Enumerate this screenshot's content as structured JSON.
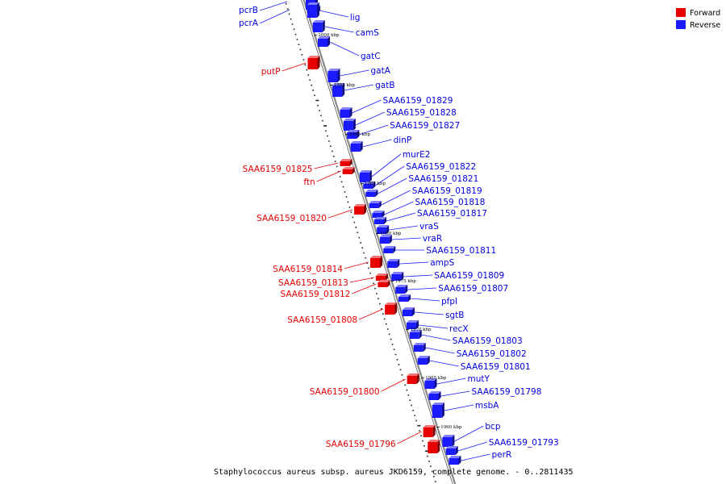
{
  "caption": "Staphylococcus aureus subsp. aureus JKD6159, complete genome. - 0..2811435",
  "legend": [
    {
      "label": "Forward",
      "color": "#e80000"
    },
    {
      "label": "Reverse",
      "color": "#1a1aff"
    }
  ],
  "colors": {
    "forward": "#e80000",
    "reverse": "#1a1aff",
    "axis": "#888888"
  },
  "ticks": [
    "2000 kbp",
    "1995 kbp",
    "1990 kbp",
    "1985 kbp",
    "1980 kbp",
    "1975 kbp",
    "1970 kbp",
    "1965 kbp",
    "1960 kbp"
  ],
  "forward_genes": [
    "putP",
    "SAA6159_01825",
    "ftn",
    "SAA6159_01820",
    "SAA6159_01814",
    "SAA6159_01813",
    "SAA6159_01812",
    "SAA6159_01808",
    "SAA6159_01800",
    "SAA6159_01796"
  ],
  "reverse_genes": [
    "pcrB",
    "pcrA",
    "lig",
    "camS",
    "gatC",
    "gatA",
    "gatB",
    "SAA6159_01829",
    "SAA6159_01828",
    "SAA6159_01827",
    "dinP",
    "murE2",
    "SAA6159_01822",
    "SAA6159_01821",
    "SAA6159_01819",
    "SAA6159_01818",
    "SAA6159_01817",
    "vraS",
    "vraR",
    "SAA6159_01811",
    "ampS",
    "SAA6159_01809",
    "SAA6159_01807",
    "pfpI",
    "sgtB",
    "recX",
    "SAA6159_01803",
    "SAA6159_01802",
    "SAA6159_01801",
    "mutY",
    "SAA6159_01798",
    "msbA",
    "bcp",
    "SAA6159_01793",
    "perR"
  ]
}
